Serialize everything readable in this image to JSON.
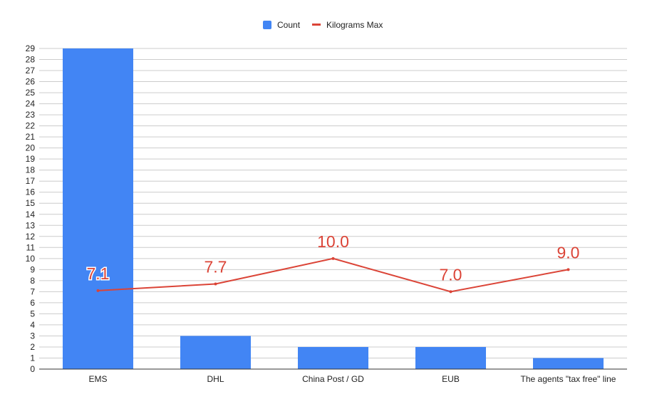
{
  "chart_data": {
    "type": "bar",
    "categories": [
      "EMS",
      "DHL",
      "China Post / GD",
      "EUB",
      "The agents \"tax free\" line"
    ],
    "series": [
      {
        "name": "Count",
        "type": "bar",
        "color": "#4285f4",
        "values": [
          29,
          3,
          2,
          2,
          1
        ]
      },
      {
        "name": "Kilograms Max",
        "type": "line",
        "color": "#db4437",
        "values": [
          7.1,
          7.7,
          10.0,
          7.0,
          9.0
        ],
        "labels": [
          "7.1",
          "7.7",
          "10.0",
          "7.0",
          "9.0"
        ]
      }
    ],
    "ylim": [
      0,
      29
    ],
    "yticks": [
      0,
      1,
      2,
      3,
      4,
      5,
      6,
      7,
      8,
      9,
      10,
      11,
      12,
      13,
      14,
      15,
      16,
      17,
      18,
      19,
      20,
      21,
      22,
      23,
      24,
      25,
      26,
      27,
      28,
      29
    ],
    "grid": true,
    "legend_position": "top-center",
    "title": "",
    "xlabel": "",
    "ylabel": ""
  }
}
